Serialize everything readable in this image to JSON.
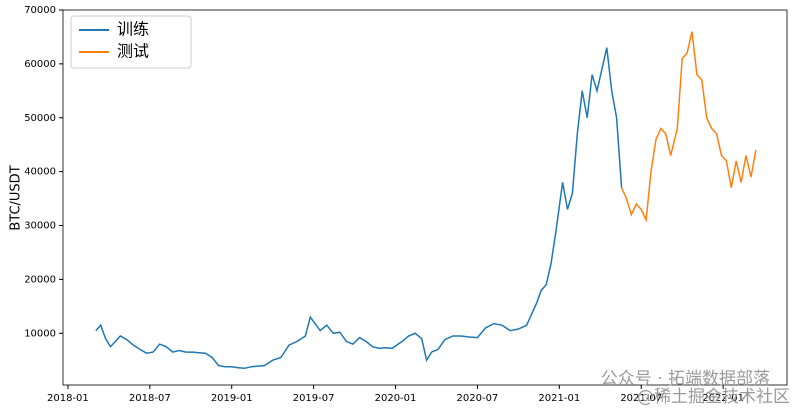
{
  "chart_data": {
    "type": "line",
    "ylabel": "BTC/USDT",
    "xlim": [
      2017.97,
      2022.39
    ],
    "ylim": [
      400,
      70000
    ],
    "xticks": [
      {
        "value": 2018.0,
        "label": "2018-01"
      },
      {
        "value": 2018.5,
        "label": "2018-07"
      },
      {
        "value": 2019.0,
        "label": "2019-01"
      },
      {
        "value": 2019.5,
        "label": "2019-07"
      },
      {
        "value": 2020.0,
        "label": "2020-01"
      },
      {
        "value": 2020.5,
        "label": "2020-07"
      },
      {
        "value": 2021.0,
        "label": "2021-01"
      },
      {
        "value": 2021.5,
        "label": "2021-07"
      },
      {
        "value": 2022.0,
        "label": "2022-01"
      }
    ],
    "yticks": [
      10000,
      20000,
      30000,
      40000,
      50000,
      60000,
      70000
    ],
    "legend": "upper left",
    "series": [
      {
        "name": "训练",
        "color": "#1f77b4",
        "x": [
          2018.17,
          2018.2,
          2018.23,
          2018.26,
          2018.29,
          2018.32,
          2018.36,
          2018.4,
          2018.44,
          2018.48,
          2018.52,
          2018.56,
          2018.6,
          2018.64,
          2018.68,
          2018.72,
          2018.76,
          2018.8,
          2018.84,
          2018.88,
          2018.92,
          2018.96,
          2019.0,
          2019.04,
          2019.08,
          2019.12,
          2019.16,
          2019.2,
          2019.25,
          2019.3,
          2019.35,
          2019.4,
          2019.45,
          2019.48,
          2019.54,
          2019.58,
          2019.62,
          2019.66,
          2019.7,
          2019.74,
          2019.78,
          2019.82,
          2019.86,
          2019.9,
          2019.94,
          2019.98,
          2020.04,
          2020.08,
          2020.12,
          2020.16,
          2020.19,
          2020.22,
          2020.26,
          2020.3,
          2020.35,
          2020.4,
          2020.45,
          2020.5,
          2020.55,
          2020.6,
          2020.65,
          2020.7,
          2020.75,
          2020.8,
          2020.83,
          2020.86,
          2020.89,
          2020.92,
          2020.95,
          2020.98,
          2021.02,
          2021.05,
          2021.08,
          2021.11,
          2021.14,
          2021.17,
          2021.2,
          2021.23,
          2021.26,
          2021.29,
          2021.32,
          2021.35,
          2021.38
        ],
        "values": [
          10500,
          11500,
          9000,
          7500,
          8500,
          9500,
          8800,
          7800,
          7000,
          6300,
          6500,
          8000,
          7500,
          6500,
          6800,
          6500,
          6500,
          6400,
          6300,
          5500,
          4000,
          3800,
          3800,
          3600,
          3500,
          3800,
          3900,
          4000,
          5000,
          5500,
          7800,
          8500,
          9500,
          13000,
          10500,
          11500,
          10000,
          10200,
          8500,
          8000,
          9200,
          8500,
          7500,
          7200,
          7300,
          7200,
          8500,
          9500,
          10000,
          9000,
          5000,
          6500,
          7000,
          8800,
          9500,
          9500,
          9300,
          9200,
          11000,
          11800,
          11500,
          10500,
          10800,
          11500,
          13500,
          15500,
          18000,
          19000,
          23000,
          29000,
          38000,
          33000,
          36000,
          47000,
          55000,
          50000,
          58000,
          55000,
          59000,
          63000,
          55000,
          50000,
          37000
        ]
      },
      {
        "name": "测试",
        "color": "#ff7f0e",
        "x": [
          2021.38,
          2021.41,
          2021.44,
          2021.47,
          2021.5,
          2021.53,
          2021.56,
          2021.59,
          2021.62,
          2021.65,
          2021.68,
          2021.72,
          2021.75,
          2021.78,
          2021.81,
          2021.84,
          2021.87,
          2021.9,
          2021.93,
          2021.96,
          2021.99,
          2022.02,
          2022.05,
          2022.08,
          2022.11,
          2022.14,
          2022.17,
          2022.2
        ],
        "values": [
          37000,
          35000,
          32000,
          34000,
          33000,
          31000,
          40000,
          46000,
          48000,
          47000,
          43000,
          48000,
          61000,
          62000,
          66000,
          58000,
          57000,
          50000,
          48000,
          47000,
          43000,
          42000,
          37000,
          42000,
          38000,
          43000,
          39000,
          44000
        ]
      }
    ],
    "annotations": [
      "公众号 · 拓端数据部落",
      "@稀土掘金技术社区"
    ]
  }
}
